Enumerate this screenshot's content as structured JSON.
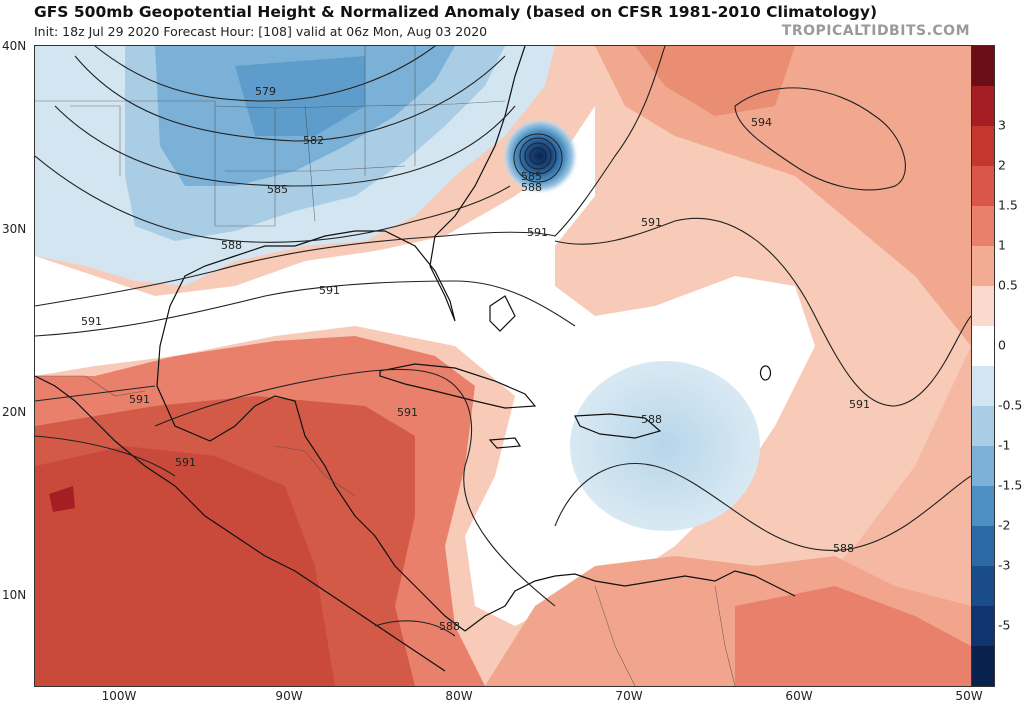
{
  "header": {
    "title": "GFS 500mb Geopotential Height & Normalized Anomaly (based on CFSR 1981-2010 Climatology)",
    "subtitle": "Init: 18z Jul 29 2020   Forecast Hour: [108]   valid at 06z Mon, Aug 03 2020",
    "credit": "TROPICALTIDBITS.COM"
  },
  "axes": {
    "lat_labels": [
      "40N",
      "30N",
      "20N",
      "10N"
    ],
    "lon_labels": [
      "100W",
      "90W",
      "80W",
      "70W",
      "60W",
      "50W"
    ]
  },
  "contours": {
    "labels": [
      "579",
      "582",
      "585",
      "588",
      "591",
      "594",
      "585",
      "588",
      "591",
      "591",
      "591",
      "591",
      "591",
      "591",
      "588",
      "588",
      "588"
    ]
  },
  "colorbar": {
    "labels": [
      "3",
      "2",
      "1.5",
      "1",
      "0.5",
      "0",
      "-0.5",
      "-1",
      "-1.5",
      "-2",
      "-3",
      "-5"
    ],
    "colors": [
      "#6b0d15",
      "#a51e24",
      "#c4372f",
      "#d9574a",
      "#e8806b",
      "#f3ab94",
      "#fbd9cc",
      "#ffffff",
      "#d2e5f1",
      "#aacde6",
      "#7bb1d6",
      "#4d8fc2",
      "#2b6aa6",
      "#1a4c89",
      "#0f3470",
      "#08214d"
    ]
  }
}
